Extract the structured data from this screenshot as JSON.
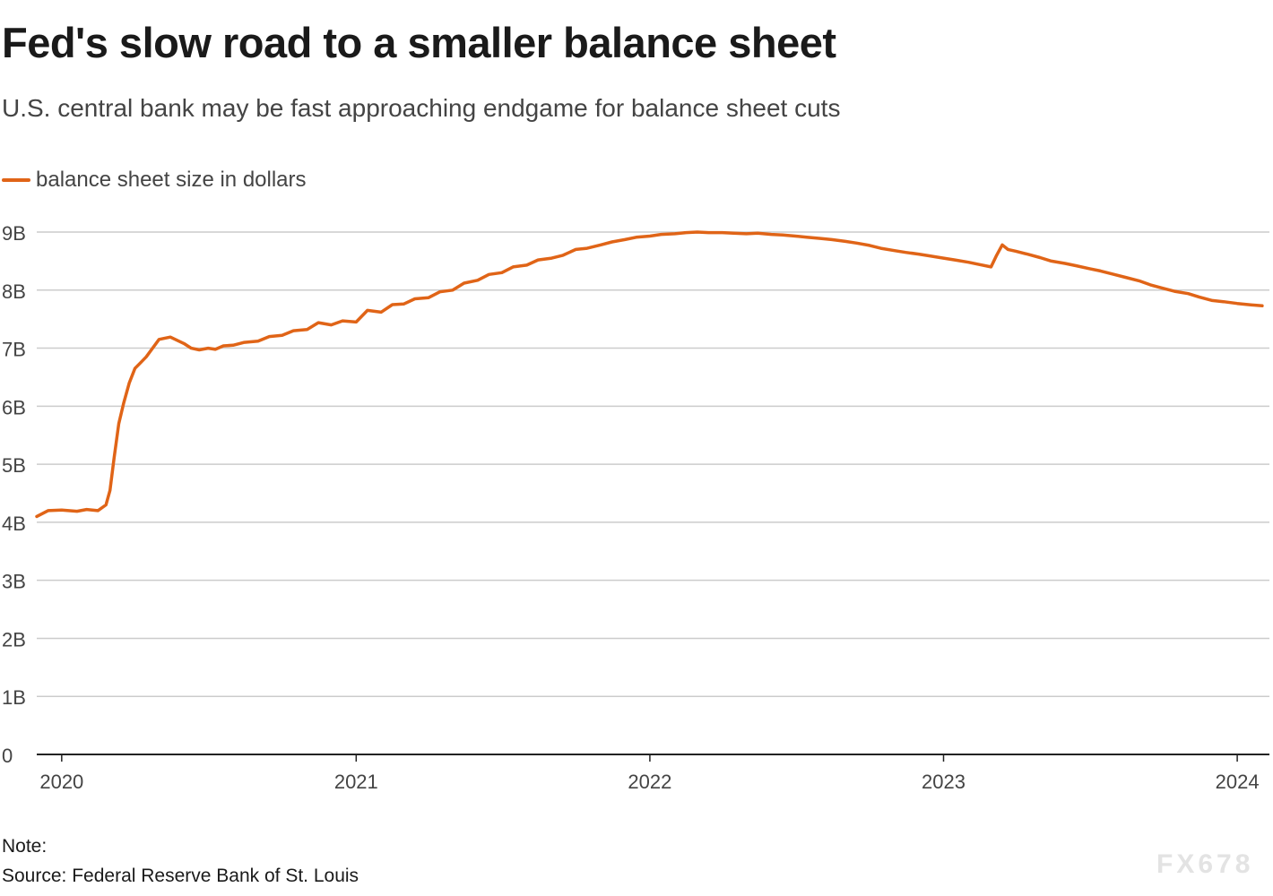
{
  "header": {
    "title": "Fed's slow road to a smaller balance sheet",
    "subtitle": "U.S. central bank may be fast approaching endgame for balance sheet cuts"
  },
  "footer": {
    "note": "Note:",
    "source": "Source: Federal Reserve Bank of St. Louis"
  },
  "watermark": "FX678",
  "colors": {
    "line": "#e06417",
    "grid": "#cccccc",
    "axis": "#222222",
    "text": "#1a1a1a",
    "muted": "#444444"
  },
  "chart_data": {
    "type": "line",
    "title": "Fed's slow road to a smaller balance sheet",
    "subtitle": "U.S. central bank may be fast approaching endgame for balance sheet cuts",
    "xlabel": "",
    "ylabel": "",
    "xlim": [
      "2019-12-01",
      "2024-02-10"
    ],
    "ylim": [
      0,
      9
    ],
    "y_ticks": [
      0,
      1,
      2,
      3,
      4,
      5,
      6,
      7,
      8,
      9
    ],
    "y_tick_labels": [
      "0",
      "1B",
      "2B",
      "3B",
      "4B",
      "5B",
      "6B",
      "7B",
      "8B",
      "9B"
    ],
    "x_ticks": [
      "2020-01-01",
      "2021-01-01",
      "2022-01-01",
      "2023-01-01",
      "2024-01-01"
    ],
    "x_tick_labels": [
      "2020",
      "2021",
      "2022",
      "2023",
      "2024"
    ],
    "grid": true,
    "legend": {
      "placement": "top-left"
    },
    "series": [
      {
        "name": "balance sheet size in dollars",
        "color": "#e06417",
        "x": [
          "2019-12-01",
          "2019-12-15",
          "2020-01-01",
          "2020-01-20",
          "2020-02-01",
          "2020-02-15",
          "2020-02-25",
          "2020-03-01",
          "2020-03-06",
          "2020-03-12",
          "2020-03-18",
          "2020-03-25",
          "2020-04-01",
          "2020-04-08",
          "2020-04-15",
          "2020-05-01",
          "2020-05-15",
          "2020-06-01",
          "2020-06-10",
          "2020-06-20",
          "2020-07-01",
          "2020-07-10",
          "2020-07-20",
          "2020-08-01",
          "2020-08-15",
          "2020-09-01",
          "2020-09-15",
          "2020-10-01",
          "2020-10-15",
          "2020-11-01",
          "2020-11-15",
          "2020-12-01",
          "2020-12-15",
          "2021-01-01",
          "2021-01-15",
          "2021-02-01",
          "2021-02-15",
          "2021-03-01",
          "2021-03-15",
          "2021-04-01",
          "2021-04-15",
          "2021-05-01",
          "2021-05-15",
          "2021-06-01",
          "2021-06-15",
          "2021-07-01",
          "2021-07-15",
          "2021-08-01",
          "2021-08-15",
          "2021-09-01",
          "2021-09-15",
          "2021-10-01",
          "2021-10-15",
          "2021-11-01",
          "2021-11-15",
          "2021-12-01",
          "2021-12-15",
          "2022-01-01",
          "2022-01-15",
          "2022-02-01",
          "2022-02-15",
          "2022-03-01",
          "2022-03-15",
          "2022-04-01",
          "2022-04-15",
          "2022-05-01",
          "2022-05-15",
          "2022-06-01",
          "2022-06-15",
          "2022-07-01",
          "2022-07-15",
          "2022-08-01",
          "2022-08-15",
          "2022-09-01",
          "2022-09-15",
          "2022-10-01",
          "2022-10-15",
          "2022-11-01",
          "2022-11-15",
          "2022-12-01",
          "2022-12-15",
          "2023-01-01",
          "2023-01-15",
          "2023-02-01",
          "2023-02-15",
          "2023-03-01",
          "2023-03-08",
          "2023-03-15",
          "2023-03-22",
          "2023-04-01",
          "2023-04-15",
          "2023-05-01",
          "2023-05-15",
          "2023-06-01",
          "2023-06-15",
          "2023-07-01",
          "2023-07-15",
          "2023-08-01",
          "2023-08-15",
          "2023-09-01",
          "2023-09-15",
          "2023-10-01",
          "2023-10-15",
          "2023-11-01",
          "2023-11-15",
          "2023-12-01",
          "2023-12-15",
          "2024-01-01",
          "2024-01-15",
          "2024-02-01"
        ],
        "values": [
          4.1,
          4.2,
          4.21,
          4.19,
          4.22,
          4.2,
          4.3,
          4.55,
          5.1,
          5.7,
          6.05,
          6.4,
          6.65,
          6.75,
          6.85,
          7.15,
          7.19,
          7.08,
          7.0,
          6.97,
          7.0,
          6.98,
          7.04,
          7.05,
          7.1,
          7.12,
          7.2,
          7.22,
          7.3,
          7.32,
          7.44,
          7.4,
          7.47,
          7.45,
          7.65,
          7.62,
          7.75,
          7.76,
          7.85,
          7.87,
          7.97,
          8.0,
          8.12,
          8.17,
          8.27,
          8.3,
          8.4,
          8.43,
          8.52,
          8.55,
          8.6,
          8.7,
          8.72,
          8.78,
          8.83,
          8.87,
          8.91,
          8.93,
          8.96,
          8.97,
          8.99,
          9.0,
          8.99,
          8.99,
          8.98,
          8.97,
          8.98,
          8.96,
          8.95,
          8.93,
          8.91,
          8.89,
          8.87,
          8.84,
          8.81,
          8.77,
          8.72,
          8.68,
          8.65,
          8.62,
          8.59,
          8.55,
          8.52,
          8.48,
          8.44,
          8.4,
          8.6,
          8.78,
          8.7,
          8.67,
          8.62,
          8.56,
          8.5,
          8.46,
          8.42,
          8.37,
          8.33,
          8.27,
          8.22,
          8.16,
          8.09,
          8.03,
          7.98,
          7.94,
          7.88,
          7.82,
          7.8,
          7.77,
          7.75,
          7.73
        ]
      }
    ]
  }
}
